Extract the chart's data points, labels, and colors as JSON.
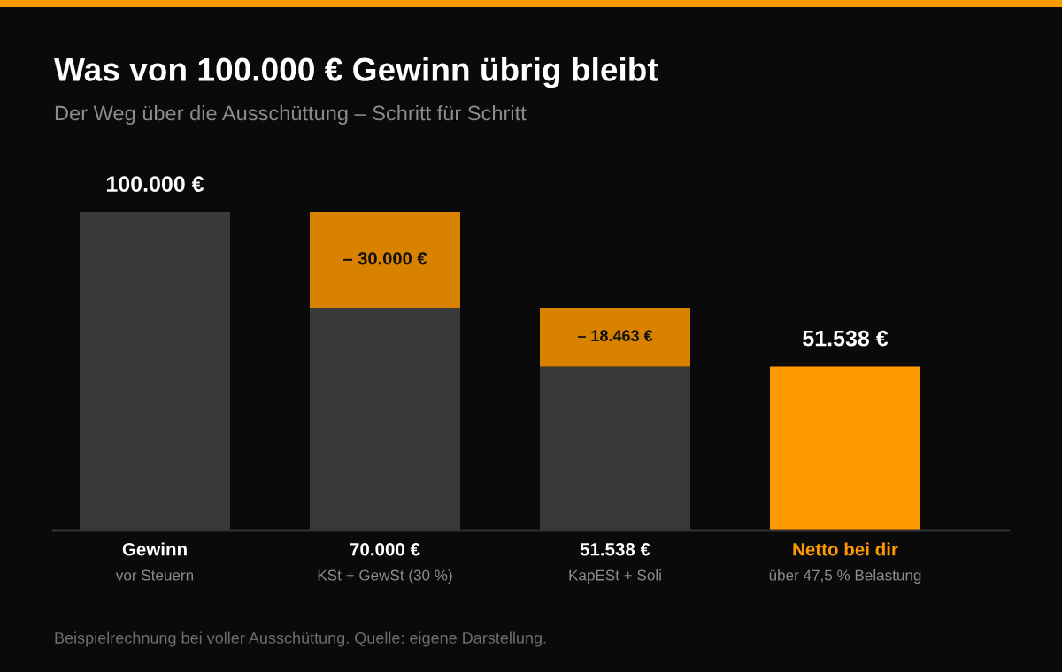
{
  "chart_data": {
    "type": "bar",
    "title": "Was von 100.000 € Gewinn übrig bleibt",
    "subtitle": "Der Weg über die Ausschüttung – Schritt für Schritt",
    "categories": [
      "Gewinn\nvor Steuern",
      "70.000 €\nKSt + GewSt (30 %)",
      "51.538 €\nKapESt + Soli",
      "Netto bei dir\nüber 47,5 % Belastung"
    ],
    "stacked": true,
    "series": [
      {
        "colors": [
          "#3a3a3a",
          "#3a3a3a",
          "#3a3a3a",
          "#ff9900"
        ],
        "values": [
          100000,
          70000,
          51538,
          51538
        ],
        "value_labels": [
          "100.000 €",
          null,
          null,
          "51.538 €"
        ]
      },
      {
        "color": "#d98200",
        "values": [
          null,
          30000,
          18463,
          null
        ]
      }
    ],
    "ylim": [
      0,
      100000
    ],
    "tick_labels": "x",
    "annotations": [
      {
        "text": "– 30.000 €",
        "x": "70.000 €\nKSt + GewSt (30 %)",
        "y": 100000
      },
      {
        "text": "– 18.463 €",
        "x": "51.538 €\nKapESt + Soli",
        "y": 70001
      },
      "Beispielrechnung bei voller Ausschüttung. Quelle: eigene Darstellung."
    ]
  }
}
